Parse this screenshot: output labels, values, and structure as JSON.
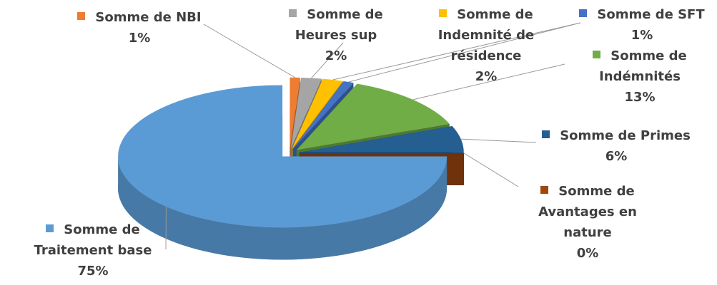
{
  "chart_data": {
    "type": "pie",
    "categories": [
      "Somme de NBI",
      "Somme de Heures sup",
      "Somme de Indemnité de résidence",
      "Somme de SFT",
      "Somme de Indémnités",
      "Somme de Primes",
      "Somme de Avantages en nature",
      "Somme de Traitement base"
    ],
    "values": [
      1,
      2,
      2,
      1,
      13,
      6,
      0,
      75
    ],
    "value_labels": [
      "1%",
      "2%",
      "2%",
      "1%",
      "13%",
      "6%",
      "0%",
      "75%"
    ],
    "colors": [
      "#ed7d31",
      "#a5a5a5",
      "#ffc000",
      "#4472c4",
      "#70ad47",
      "#255e91",
      "#9e480e",
      "#5b9bd5"
    ]
  }
}
